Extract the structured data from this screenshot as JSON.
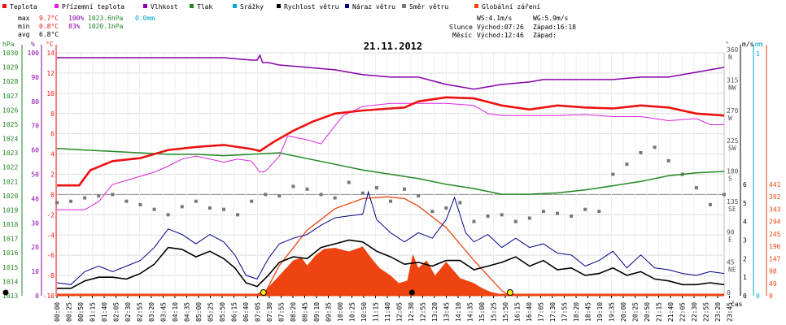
{
  "chart_data": {
    "type": "line",
    "title": "21.11.2012",
    "legend": [
      {
        "name": "Teplota",
        "color": "#ee1111"
      },
      {
        "name": "Přízemní teplota",
        "color": "#dd22dd"
      },
      {
        "name": "Vlhkost",
        "color": "#8800aa"
      },
      {
        "name": "Tlak",
        "color": "#228822"
      },
      {
        "name": "Srážky",
        "color": "#00aacc"
      },
      {
        "name": "Rychlost větru",
        "color": "#000000"
      },
      {
        "name": "Náraz větru",
        "color": "#000088"
      },
      {
        "name": "Směr větru",
        "color": "#777777"
      },
      {
        "name": "Globální záření",
        "color": "#ee4411"
      }
    ],
    "stats": {
      "max_label": "max",
      "max_temp": "9.7°C",
      "max_hum": "100%",
      "max_press": "1023.6hPa",
      "max_rain": "0.0mm",
      "min_label": "min",
      "min_temp": "0.8°C",
      "min_hum": "83%",
      "min_press": "1020.1hPa",
      "avg_label": "avg",
      "avg_temp": "6.8°C"
    },
    "wind_info": {
      "ws": "WS:4.1m/s",
      "wg": "WG:5.9m/s"
    },
    "sun_info": {
      "label": "Slunce",
      "rise": "Východ:07:26",
      "set": "Západ:16:18"
    },
    "moon_info": {
      "label": "Měsíc",
      "rise": "Východ:12:46",
      "set": "Západ:"
    },
    "axes": {
      "hpa": {
        "unit": "hPa",
        "ticks": [
          "1030",
          "1029",
          "1028",
          "1027",
          "1026",
          "1025",
          "1024",
          "1023",
          "1022",
          "1021",
          "1020",
          "1019",
          "1018",
          "1017",
          "1016",
          "1015",
          "1014",
          "1013"
        ]
      },
      "pct": {
        "unit": "%",
        "ticks": [
          "100",
          "90",
          "80",
          "70",
          "60",
          "50",
          "40",
          "30",
          "20",
          "10",
          "0"
        ]
      },
      "temp": {
        "unit": "°C",
        "ticks": [
          "14",
          "12",
          "10",
          "8",
          "6",
          "4",
          "2",
          "0",
          "-2",
          "-4",
          "-6",
          "-8",
          "-10"
        ],
        "range": [
          -10,
          14
        ]
      },
      "dir": {
        "unit": "°",
        "ticks": [
          {
            "v": "360",
            "d": "N"
          },
          {
            "v": "315",
            "d": "NW"
          },
          {
            "v": "270",
            "d": "W"
          },
          {
            "v": "225",
            "d": "SW"
          },
          {
            "v": "180",
            "d": "S"
          },
          {
            "v": "135",
            "d": "SE"
          },
          {
            "v": "90",
            "d": "E"
          },
          {
            "v": "45",
            "d": "NE"
          },
          {
            "v": "0",
            "d": ""
          }
        ]
      },
      "ms": {
        "unit": "m/s",
        "ticks": [
          "6",
          "5",
          "4",
          "3",
          "2",
          "1",
          "0"
        ]
      },
      "mm": {
        "unit": "mm",
        "ticks": [
          "1",
          "0"
        ]
      },
      "wm2": {
        "ticks": [
          "441",
          "392",
          "343",
          "294",
          "245",
          "196",
          "147",
          "98",
          "49",
          "0"
        ]
      },
      "x_unit": "čas",
      "x_ticks": [
        "00:00",
        "00:25",
        "00:50",
        "01:15",
        "01:40",
        "02:05",
        "02:30",
        "02:55",
        "03:20",
        "03:45",
        "04:10",
        "04:35",
        "05:00",
        "05:25",
        "05:50",
        "06:15",
        "06:40",
        "07:05",
        "07:30",
        "07:55",
        "08:20",
        "08:45",
        "09:10",
        "09:35",
        "10:00",
        "10:25",
        "10:50",
        "11:15",
        "11:40",
        "12:05",
        "12:30",
        "12:55",
        "13:20",
        "13:45",
        "14:10",
        "14:35",
        "15:00",
        "15:25",
        "15:50",
        "16:15",
        "16:40",
        "17:05",
        "17:30",
        "17:55",
        "18:20",
        "18:45",
        "19:10",
        "19:35",
        "20:00",
        "20:25",
        "20:50",
        "21:15",
        "21:40",
        "22:05",
        "22:30",
        "22:55",
        "23:20",
        "23:45"
      ]
    },
    "series": {
      "temperature": {
        "hours": [
          0,
          0.8,
          1.2,
          2,
          3,
          4,
          5,
          6,
          7,
          7.3,
          7.8,
          8.5,
          9.2,
          10,
          11,
          12,
          12.5,
          13,
          14,
          15,
          16,
          17,
          18,
          19,
          20,
          21,
          22,
          23,
          24
        ],
        "values": [
          0.9,
          0.9,
          2.4,
          3.3,
          3.6,
          4.4,
          4.7,
          4.9,
          4.5,
          4.3,
          5.2,
          6.3,
          7.2,
          8.0,
          8.3,
          8.5,
          8.6,
          9.2,
          9.6,
          9.5,
          8.8,
          8.4,
          8.8,
          8.6,
          8.5,
          8.8,
          8.6,
          8.0,
          7.8
        ]
      },
      "ground_temperature": {
        "hours": [
          0,
          1,
          1.5,
          2,
          3,
          3.5,
          4,
          4.5,
          5,
          5.5,
          6,
          6.5,
          7,
          7.3,
          7.5,
          8,
          8.3,
          9,
          9.5,
          10,
          10.3,
          11,
          12,
          13,
          14,
          15,
          15.5,
          16,
          17,
          18,
          19,
          20,
          21,
          21.5,
          22,
          22.5,
          23,
          23.5,
          24
        ],
        "values": [
          -1.5,
          -1.5,
          -0.7,
          1,
          1.8,
          2.2,
          2.8,
          3.5,
          3.8,
          3.5,
          3.2,
          3.5,
          3.3,
          2.2,
          2.3,
          3.8,
          5.8,
          5.4,
          5.0,
          6.8,
          7.8,
          8.7,
          9.0,
          9.0,
          9.0,
          8.8,
          8.0,
          7.8,
          7.8,
          7.8,
          7.9,
          7.7,
          7.7,
          7.5,
          7.3,
          7.4,
          7.5,
          6.9,
          6.9
        ]
      },
      "humidity": {
        "hours": [
          0,
          1,
          2,
          3,
          4,
          5,
          6,
          7,
          7.2,
          7.3,
          7.4,
          7.6,
          8,
          9,
          10,
          11,
          12,
          13,
          14,
          15,
          16,
          17,
          17.5,
          18,
          19,
          20,
          21,
          22,
          23,
          24
        ],
        "values": [
          98,
          98,
          98,
          98,
          98,
          98,
          98,
          97,
          97,
          99,
          96,
          96,
          95,
          94,
          93,
          91,
          90,
          90,
          87,
          85,
          87,
          88,
          89,
          89,
          89,
          89,
          90,
          90,
          92,
          94
        ]
      },
      "pressure": {
        "hours": [
          0,
          1,
          2,
          3,
          4,
          5,
          6,
          7,
          8,
          9,
          10,
          11,
          12,
          13,
          14,
          15,
          16,
          17,
          18,
          19,
          20,
          21,
          22,
          23,
          24
        ],
        "values": [
          1023.3,
          1023.2,
          1023.1,
          1023.0,
          1022.9,
          1022.9,
          1022.8,
          1022.9,
          1023.0,
          1022.6,
          1022.2,
          1021.8,
          1021.5,
          1021.2,
          1020.8,
          1020.5,
          1020.1,
          1020.1,
          1020.2,
          1020.4,
          1020.7,
          1021.0,
          1021.4,
          1021.6,
          1021.7
        ]
      },
      "wind_speed": {
        "hours": [
          0,
          0.5,
          1,
          1.5,
          2,
          2.5,
          3,
          3.5,
          4,
          4.5,
          5,
          5.5,
          6,
          6.4,
          6.8,
          7.2,
          7.6,
          8,
          8.5,
          9,
          9.5,
          10,
          10.5,
          11,
          11.5,
          12,
          12.5,
          13,
          13.5,
          14,
          14.5,
          15,
          15.5,
          16,
          16.5,
          17,
          17.5,
          18,
          18.5,
          19,
          19.5,
          20,
          20.5,
          21,
          21.5,
          22,
          22.5,
          23,
          23.5,
          24
        ],
        "values": [
          0.4,
          0.4,
          0.8,
          1.0,
          1.0,
          0.9,
          1.2,
          1.7,
          2.6,
          2.5,
          2.1,
          2.4,
          2.0,
          1.5,
          0.7,
          0.5,
          1.1,
          1.8,
          2.1,
          2.0,
          2.6,
          2.8,
          3.0,
          2.9,
          2.4,
          2.1,
          1.7,
          1.8,
          1.6,
          1.9,
          1.9,
          1.4,
          1.6,
          1.8,
          2.1,
          1.6,
          1.9,
          1.4,
          1.5,
          1.1,
          1.2,
          1.5,
          1.1,
          1.3,
          0.9,
          0.8,
          0.6,
          0.6,
          0.7,
          0.6
        ]
      },
      "wind_gust": {
        "hours": [
          0,
          0.5,
          1,
          1.5,
          2,
          2.5,
          3,
          3.5,
          4,
          4.5,
          5,
          5.5,
          6,
          6.4,
          6.8,
          7.2,
          7.6,
          8,
          8.5,
          9,
          9.5,
          10,
          10.5,
          11,
          11.2,
          11.5,
          12,
          12.5,
          13,
          13.5,
          14,
          14.3,
          14.7,
          15,
          15.5,
          16,
          16.5,
          17,
          17.5,
          18,
          18.5,
          19,
          19.5,
          20,
          20.5,
          21,
          21.5,
          22,
          22.5,
          23,
          23.5,
          24
        ],
        "values": [
          0.7,
          0.6,
          1.3,
          1.6,
          1.3,
          1.6,
          1.9,
          2.6,
          3.6,
          3.3,
          2.8,
          3.3,
          2.9,
          2.2,
          1.1,
          0.9,
          2.0,
          2.8,
          3.1,
          3.3,
          3.8,
          4.2,
          4.3,
          4.4,
          5.6,
          4.1,
          3.4,
          2.9,
          3.4,
          3.1,
          4.1,
          5.3,
          3.4,
          2.9,
          3.3,
          2.6,
          3.1,
          2.6,
          2.8,
          2.3,
          2.2,
          1.6,
          1.9,
          2.4,
          1.5,
          2.2,
          1.5,
          1.4,
          1.2,
          1.1,
          1.3,
          1.2
        ]
      },
      "wind_direction": {
        "hours": [
          0,
          0.5,
          1,
          1.5,
          2,
          2.5,
          3,
          3.5,
          4,
          4.5,
          5,
          5.5,
          6,
          6.5,
          7,
          7.5,
          8,
          8.5,
          9,
          9.5,
          10,
          10.5,
          11,
          11.5,
          12,
          12.5,
          13,
          13.5,
          14,
          14.5,
          15,
          15.5,
          16,
          16.5,
          17,
          17.5,
          18,
          18.5,
          19,
          19.5,
          20,
          20.5,
          21,
          21.5,
          22,
          22.5,
          23,
          23.5,
          24
        ],
        "values": [
          138,
          140,
          145,
          148,
          150,
          140,
          135,
          128,
          120,
          132,
          140,
          130,
          128,
          120,
          140,
          150,
          148,
          162,
          158,
          150,
          145,
          168,
          152,
          160,
          140,
          158,
          148,
          125,
          130,
          138,
          110,
          118,
          120,
          110,
          115,
          125,
          122,
          118,
          128,
          125,
          180,
          195,
          212,
          220,
          200,
          180,
          160,
          135,
          150
        ]
      },
      "solar_radiation": {
        "hours": [
          0,
          7.0,
          7.5,
          8,
          8.5,
          8.8,
          9,
          9.3,
          9.6,
          10,
          10.5,
          11,
          11.3,
          11.6,
          12,
          12.3,
          12.6,
          12.8,
          13,
          13.3,
          13.6,
          14,
          14.5,
          15,
          15.3,
          15.6,
          16,
          16.5,
          24
        ],
        "values": [
          0,
          0,
          22,
          80,
          140,
          150,
          120,
          160,
          185,
          190,
          175,
          195,
          150,
          110,
          80,
          50,
          60,
          165,
          110,
          140,
          80,
          135,
          70,
          50,
          30,
          15,
          5,
          0,
          0
        ]
      },
      "clear_sky_radiation": {
        "hours": [
          7.43,
          8,
          9,
          10,
          11,
          11.87,
          12.5,
          13,
          14,
          15,
          16,
          16.3
        ],
        "values": [
          0,
          120,
          260,
          345,
          385,
          392,
          385,
          355,
          270,
          140,
          20,
          0
        ]
      }
    },
    "markers": [
      {
        "name": "sunrise",
        "hour": 7.43
      },
      {
        "name": "sunset",
        "hour": 16.3
      },
      {
        "name": "moonrise",
        "hour": 12.77
      }
    ]
  }
}
